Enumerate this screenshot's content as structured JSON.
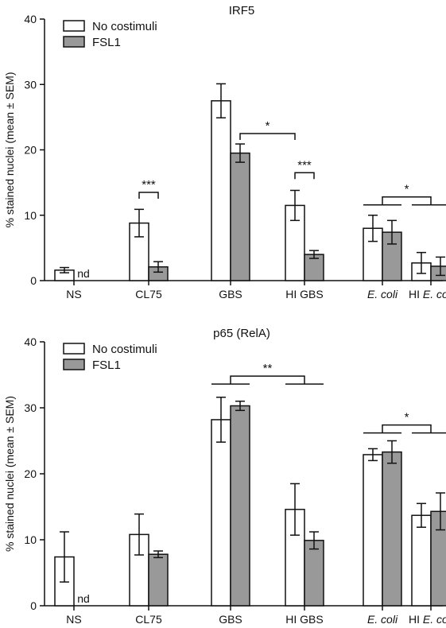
{
  "chart_data": [
    {
      "type": "bar",
      "title": "IRF5",
      "ylabel": "% stained nuclei (mean ± SEM)",
      "xlabel": "",
      "ylim": [
        0,
        40
      ],
      "yticks": [
        0,
        10,
        20,
        30,
        40
      ],
      "categories": [
        "NS",
        "CL75",
        "GBS",
        "HI GBS",
        "E. coli",
        "HI E. coli"
      ],
      "category_italic": [
        false,
        false,
        false,
        false,
        true,
        true
      ],
      "legend_position": "top-left",
      "series": [
        {
          "name": "No costimuli",
          "color": "#ffffff",
          "values": [
            1.6,
            8.8,
            27.5,
            11.5,
            8.0,
            2.7
          ],
          "errors": [
            0.4,
            2.1,
            2.6,
            2.3,
            2.0,
            1.6
          ]
        },
        {
          "name": "FSL1",
          "color": "#999999",
          "values": [
            null,
            2.1,
            19.5,
            4.0,
            7.4,
            2.2
          ],
          "errors": [
            null,
            0.8,
            1.4,
            0.6,
            1.8,
            1.4
          ]
        }
      ],
      "missing_label": "nd",
      "annotations": [
        {
          "label": "***",
          "from": [
            1,
            0
          ],
          "to": [
            1,
            1
          ],
          "y": 13.5
        },
        {
          "label": "*",
          "from": [
            2,
            1
          ],
          "to": [
            3,
            0
          ],
          "y": 22.5
        },
        {
          "label": "***",
          "from": [
            3,
            0
          ],
          "to": [
            3,
            1
          ],
          "y": 16.5
        },
        {
          "label": "*",
          "from": [
            4
          ],
          "to": [
            5
          ],
          "y": 12.8,
          "group": true
        }
      ]
    },
    {
      "type": "bar",
      "title": "p65 (RelA)",
      "ylabel": "% stained nuclei (mean ± SEM)",
      "xlabel": "",
      "ylim": [
        0,
        40
      ],
      "yticks": [
        0,
        10,
        20,
        30,
        40
      ],
      "categories": [
        "NS",
        "CL75",
        "GBS",
        "HI GBS",
        "E. coli",
        "HI E. coli"
      ],
      "category_italic": [
        false,
        false,
        false,
        false,
        true,
        true
      ],
      "legend_position": "top-left",
      "series": [
        {
          "name": "No costimuli",
          "color": "#ffffff",
          "values": [
            7.4,
            10.8,
            28.2,
            14.6,
            22.9,
            13.7
          ],
          "errors": [
            3.8,
            3.1,
            3.4,
            3.9,
            0.9,
            1.8
          ]
        },
        {
          "name": "FSL1",
          "color": "#999999",
          "values": [
            null,
            7.8,
            30.3,
            9.9,
            23.3,
            14.3
          ],
          "errors": [
            null,
            0.5,
            0.7,
            1.3,
            1.7,
            2.8
          ]
        }
      ],
      "missing_label": "nd",
      "annotations": [
        {
          "label": "**",
          "from": [
            2
          ],
          "to": [
            3
          ],
          "y": 34.8,
          "group": true
        },
        {
          "label": "*",
          "from": [
            4
          ],
          "to": [
            5
          ],
          "y": 27.4,
          "group": true
        }
      ]
    }
  ]
}
